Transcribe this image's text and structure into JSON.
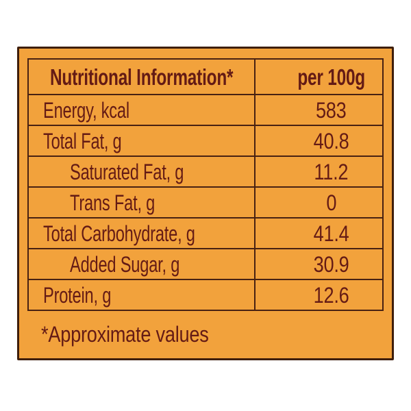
{
  "colors": {
    "page_background": "#ffffff",
    "card_background": "#f2a23c",
    "text": "#641b15",
    "border": "#482112",
    "card_border": "#3e1e0c"
  },
  "nutrition": {
    "header": {
      "name_column": "Nutritional Information*",
      "value_column": "per 100g"
    },
    "rows": [
      {
        "label": "Energy, kcal",
        "value": "583",
        "indent": false
      },
      {
        "label": "Total Fat, g",
        "value": "40.8",
        "indent": false
      },
      {
        "label": "Saturated Fat, g",
        "value": "11.2",
        "indent": true
      },
      {
        "label": "Trans Fat, g",
        "value": "0",
        "indent": true
      },
      {
        "label": "Total Carbohydrate, g",
        "value": "41.4",
        "indent": false
      },
      {
        "label": "Added Sugar, g",
        "value": "30.9",
        "indent": true
      },
      {
        "label": "Protein, g",
        "value": "12.6",
        "indent": false
      }
    ],
    "footnote": "*Approximate values"
  }
}
